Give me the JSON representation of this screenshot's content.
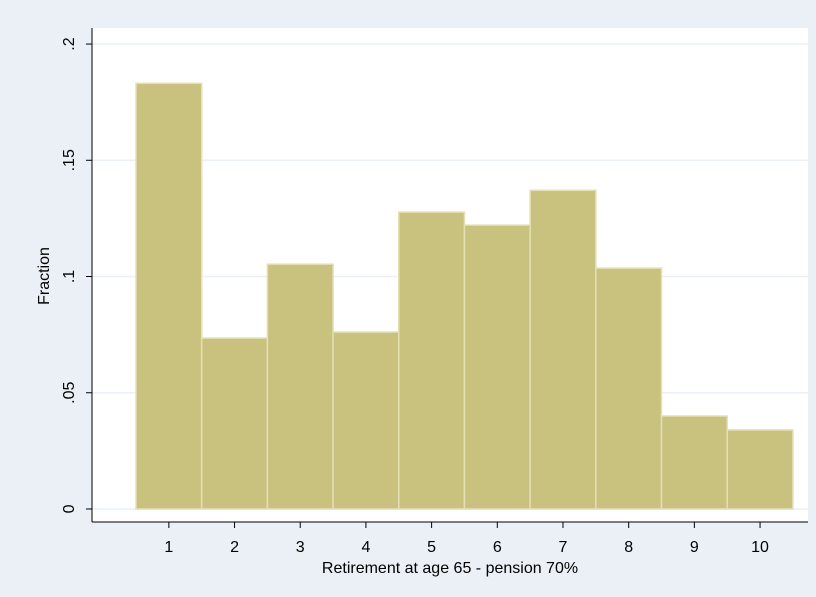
{
  "chart_data": {
    "type": "histogram",
    "xlabel": "Retirement at age 65 - pension 70%",
    "ylabel": "Fraction",
    "bins": [
      0.5,
      1.5,
      2.5,
      3.5,
      4.5,
      5.5,
      6.5,
      7.5,
      8.5,
      9.5,
      10.5
    ],
    "values": [
      0.1831,
      0.0735,
      0.1053,
      0.0761,
      0.1277,
      0.1221,
      0.1371,
      0.1036,
      0.04,
      0.034
    ],
    "color": "#c9c27f",
    "xlim": [
      -0.17,
      10.73
    ],
    "xticks": [
      1,
      2,
      3,
      4,
      5,
      6,
      7,
      8,
      9,
      10
    ],
    "ylim": [
      -0.0056,
      0.2069
    ],
    "yticks": [
      0,
      {
        "value": 0.05,
        "label": ".05"
      },
      {
        "value": 0.1,
        "label": ".1"
      },
      {
        "value": 0.15,
        "label": ".15"
      },
      {
        "value": 0.2,
        "label": ".2"
      }
    ],
    "grid": true
  }
}
